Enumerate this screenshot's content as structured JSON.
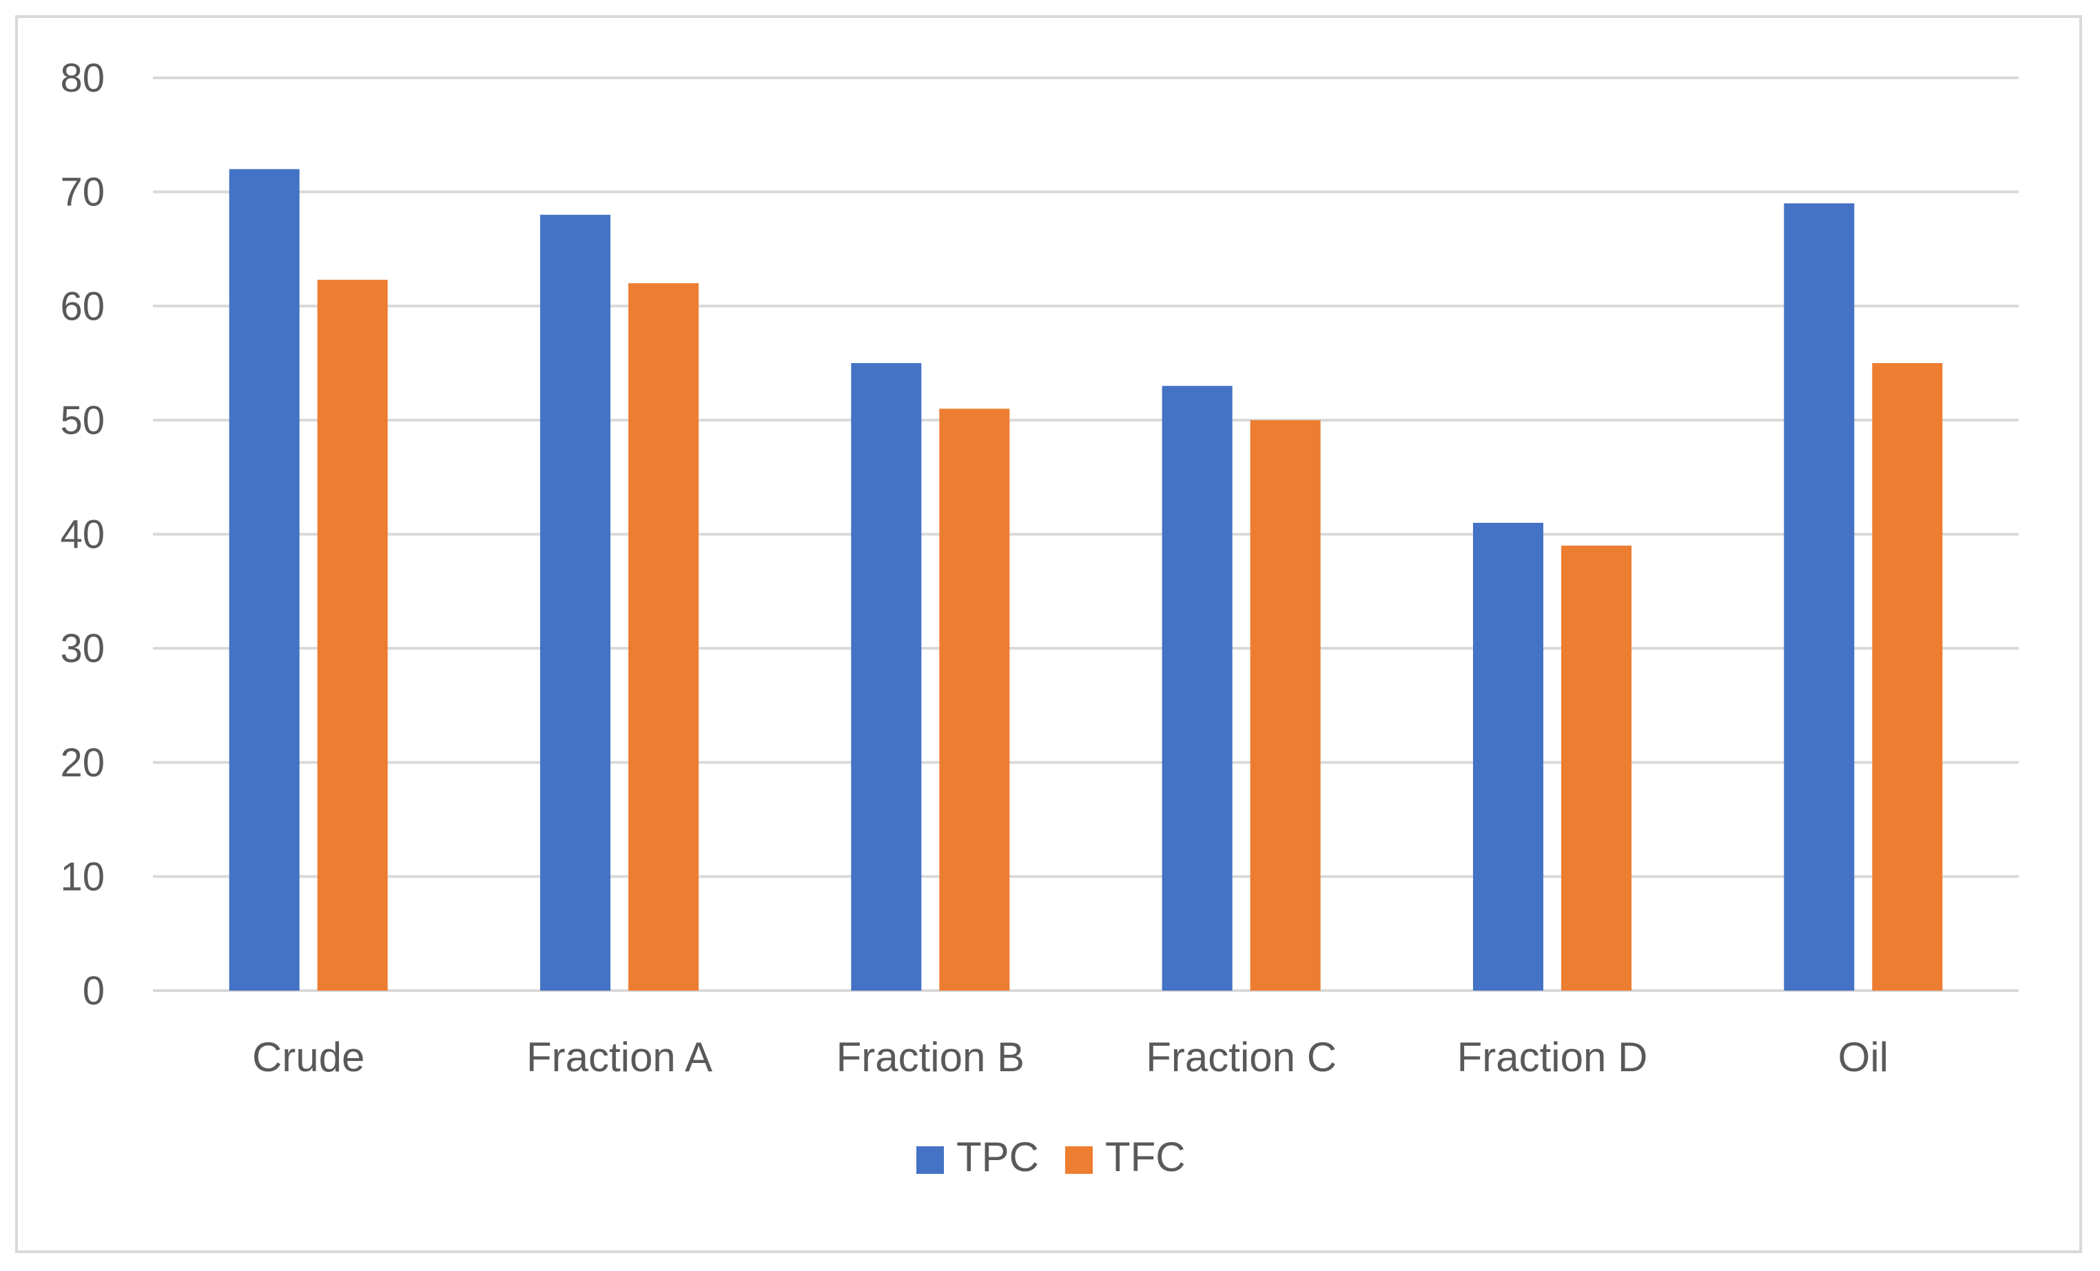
{
  "chart_data": {
    "type": "bar",
    "title": "",
    "xlabel": "",
    "ylabel": "",
    "categories": [
      "Crude",
      "Fraction A",
      "Fraction B",
      "Fraction C",
      "Fraction D",
      "Oil"
    ],
    "series": [
      {
        "name": "TPC",
        "color": "#4472C4",
        "values": [
          72,
          68,
          55,
          53,
          41,
          69
        ]
      },
      {
        "name": "TFC",
        "color": "#ED7D31",
        "values": [
          62.3,
          62,
          51,
          50,
          39,
          55
        ]
      }
    ],
    "ylim": [
      0,
      80
    ],
    "yticks": [
      "0",
      "10",
      "20",
      "30",
      "40",
      "50",
      "60",
      "70",
      "80"
    ],
    "grid": true,
    "legend_position": "bottom"
  }
}
